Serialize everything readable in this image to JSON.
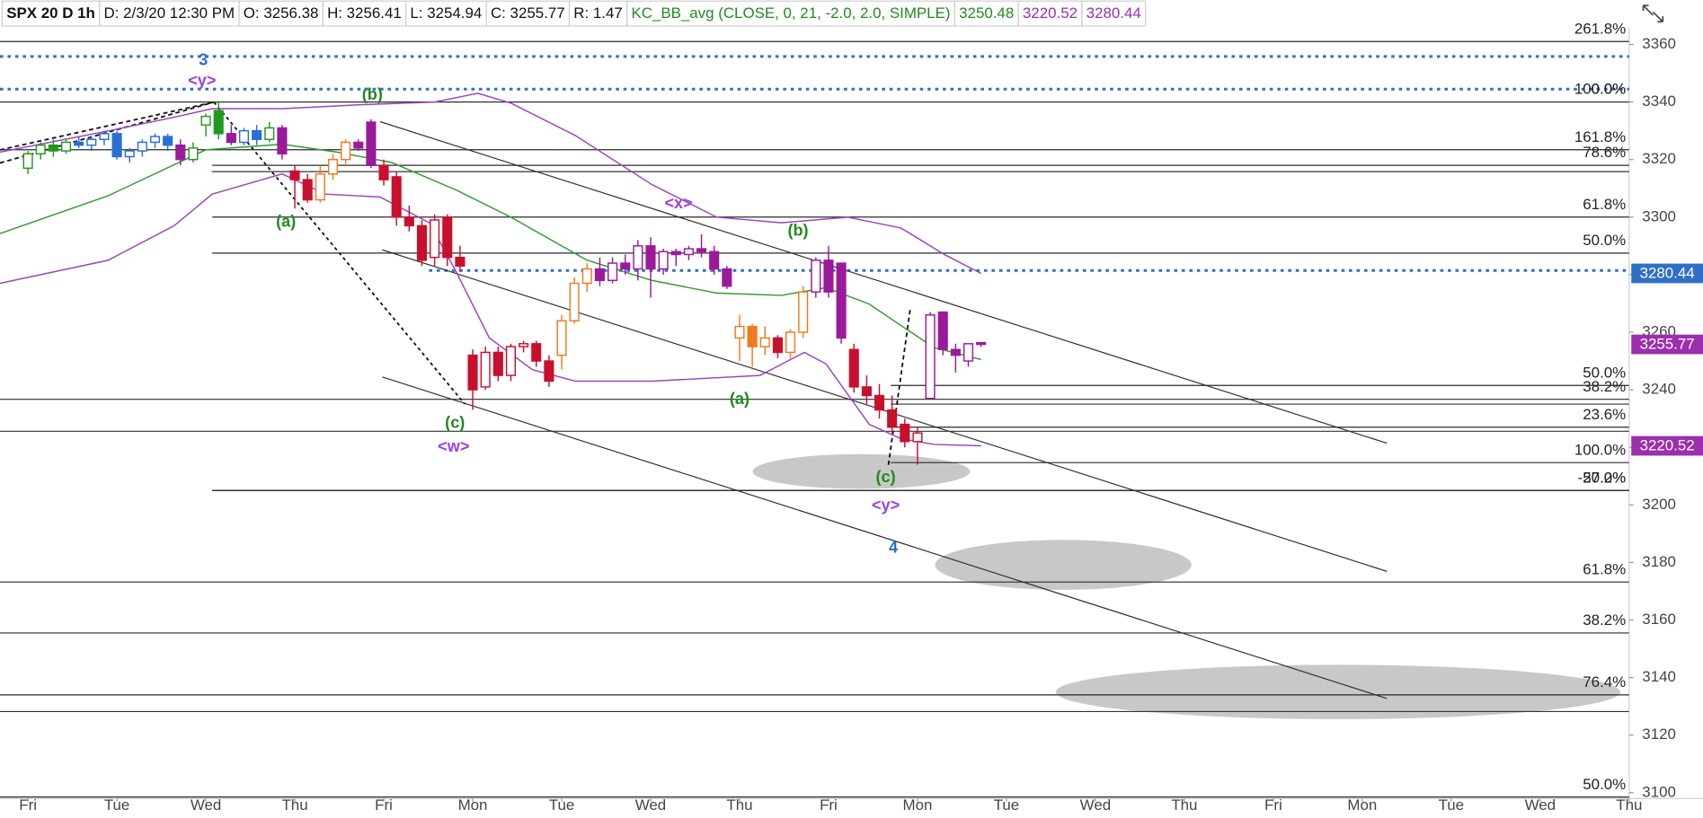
{
  "chart_data": {
    "type": "candlestick",
    "title": "SPX 20 D 1h",
    "info": [
      {
        "text": "D: 2/3/20 12:30 PM",
        "color": "#111111"
      },
      {
        "text": "O: 3256.38",
        "color": "#111111"
      },
      {
        "text": "H: 3256.41",
        "color": "#111111"
      },
      {
        "text": "L: 3254.94",
        "color": "#111111"
      },
      {
        "text": "C: 3255.77",
        "color": "#111111"
      },
      {
        "text": "R: 1.47",
        "color": "#111111"
      },
      {
        "text": "KC_BB_avg (CLOSE, 0, 21, -2.0, 2.0, SIMPLE)",
        "color": "#1f8a1f"
      },
      {
        "text": "3250.48",
        "color": "#1f8a1f"
      },
      {
        "text": "3220.52",
        "color": "#9b2fae"
      },
      {
        "text": "3280.44",
        "color": "#9b2fae"
      }
    ],
    "xlim": [
      -2.2,
      126
    ],
    "xticks": [
      {
        "value": 0,
        "label": "Fri"
      },
      {
        "value": 7,
        "label": "Tue"
      },
      {
        "value": 14,
        "label": "Wed"
      },
      {
        "value": 21,
        "label": "Thu"
      },
      {
        "value": 28,
        "label": "Fri"
      },
      {
        "value": 35,
        "label": "Mon"
      },
      {
        "value": 42,
        "label": "Tue"
      },
      {
        "value": 49,
        "label": "Wed"
      },
      {
        "value": 56,
        "label": "Thu"
      },
      {
        "value": 63,
        "label": "Fri"
      },
      {
        "value": 70,
        "label": "Mon"
      },
      {
        "value": 77,
        "label": "Tue"
      },
      {
        "value": 84,
        "label": "Wed"
      },
      {
        "value": 91,
        "label": "Thu"
      },
      {
        "value": 98,
        "label": "Fri"
      },
      {
        "value": 105,
        "label": "Mon"
      },
      {
        "value": 112,
        "label": "Tue"
      },
      {
        "value": 119,
        "label": "Wed"
      },
      {
        "value": 126,
        "label": "Thu"
      }
    ],
    "ylim": [
      3098,
      3366
    ],
    "yticks": [
      3100,
      3120,
      3140,
      3160,
      3180,
      3200,
      3220,
      3240,
      3260,
      3280,
      3300,
      3320,
      3340,
      3360
    ],
    "x": [
      0,
      1,
      2,
      3,
      4,
      5,
      6,
      7,
      8,
      9,
      10,
      11,
      12,
      13,
      14,
      15,
      16,
      17,
      18,
      19,
      20,
      21,
      22,
      23,
      24,
      25,
      26,
      27,
      28,
      29,
      30,
      31,
      32,
      33,
      34,
      35,
      36,
      37,
      38,
      39,
      40,
      41,
      42,
      43,
      44,
      45,
      46,
      47,
      48,
      49,
      50,
      51,
      52,
      53,
      54,
      55,
      56,
      57,
      58,
      59,
      60,
      61,
      62,
      63,
      64,
      65,
      66,
      67,
      68,
      69,
      70,
      71,
      72,
      73,
      74,
      75
    ],
    "open": [
      3317,
      3322,
      3325,
      3323,
      3326,
      3325,
      3327,
      3329,
      3321,
      3323,
      3326,
      3328,
      3325,
      3320,
      3332,
      3337,
      3329,
      3326,
      3330,
      3327,
      3331,
      3316,
      3313,
      3306,
      3315,
      3320,
      3326,
      3333,
      3318,
      3314,
      3300,
      3297,
      3286,
      3300,
      3286,
      3252,
      3241,
      3253,
      3245,
      3255,
      3256,
      3250,
      3252,
      3264,
      3277,
      3282,
      3278,
      3284,
      3282,
      3290,
      3282,
      3288,
      3287,
      3289,
      3288,
      3282,
      3258,
      3262,
      3255,
      3258,
      3253,
      3260,
      3274,
      3285,
      3284,
      3254,
      3241,
      3238,
      3233,
      3228,
      3222,
      3237,
      3267,
      3254,
      3250,
      3256.38
    ],
    "high": [
      3323,
      3326,
      3327,
      3327,
      3328,
      3328,
      3330,
      3330,
      3324,
      3327,
      3329,
      3329,
      3327,
      3326,
      3336,
      3340,
      3332,
      3331,
      3332,
      3333,
      3332,
      3318,
      3315,
      3318,
      3322,
      3327,
      3327,
      3334,
      3320,
      3316,
      3304,
      3299,
      3301,
      3301,
      3290,
      3254,
      3255,
      3255,
      3256,
      3257,
      3257,
      3252,
      3266,
      3279,
      3284,
      3286,
      3286,
      3287,
      3292,
      3293,
      3289,
      3289,
      3290,
      3294,
      3290,
      3283,
      3266,
      3263,
      3262,
      3259,
      3261,
      3276,
      3286,
      3290,
      3284,
      3256,
      3245,
      3242,
      3238,
      3230,
      3227,
      3267,
      3267,
      3256,
      3256,
      3256.41
    ],
    "low": [
      3315,
      3320,
      3321,
      3322,
      3324,
      3323,
      3325,
      3320,
      3319,
      3321,
      3324,
      3323,
      3318,
      3319,
      3328,
      3327,
      3325,
      3325,
      3325,
      3326,
      3320,
      3303,
      3305,
      3305,
      3313,
      3318,
      3323,
      3317,
      3311,
      3297,
      3295,
      3283,
      3283,
      3283,
      3281,
      3233,
      3240,
      3243,
      3243,
      3253,
      3248,
      3241,
      3247,
      3263,
      3274,
      3276,
      3277,
      3280,
      3278,
      3272,
      3280,
      3283,
      3285,
      3286,
      3280,
      3275,
      3250,
      3248,
      3252,
      3251,
      3251,
      3258,
      3272,
      3272,
      3256,
      3239,
      3235,
      3230,
      3225,
      3220,
      3214,
      3237,
      3252,
      3246,
      3248,
      3254.94
    ],
    "close": [
      3322,
      3325,
      3323,
      3326,
      3325,
      3327,
      3329,
      3321,
      3323,
      3326,
      3328,
      3325,
      3320,
      3324,
      3335,
      3329,
      3326,
      3330,
      3327,
      3331,
      3322,
      3313,
      3306,
      3315,
      3320,
      3326,
      3324,
      3318,
      3313,
      3300,
      3297,
      3285,
      3299,
      3286,
      3283,
      3240,
      3253,
      3245,
      3255,
      3256,
      3250,
      3243,
      3264,
      3277,
      3282,
      3278,
      3284,
      3282,
      3290,
      3282,
      3288,
      3287,
      3289,
      3288,
      3282,
      3276,
      3262,
      3255,
      3258,
      3253,
      3260,
      3274,
      3285,
      3274,
      3258,
      3241,
      3238,
      3233,
      3227,
      3222,
      3225,
      3266,
      3254,
      3252,
      3256,
      3255.77
    ],
    "colors": [
      "#1f9a1f",
      "#1f9a1f",
      "#1f9a1f",
      "#1f9a1f",
      "#2a6fd6",
      "#2a6fd6",
      "#2a6fd6",
      "#2a6fd6",
      "#2a6fd6",
      "#2a6fd6",
      "#2a6fd6",
      "#2a6fd6",
      "#9b1a9b",
      "#1f9a1f",
      "#1f9a1f",
      "#1f9a1f",
      "#9b1a9b",
      "#2a6fd6",
      "#2a6fd6",
      "#1f9a1f",
      "#9b1a9b",
      "#c8102e",
      "#c8102e",
      "#f07a1e",
      "#f07a1e",
      "#f07a1e",
      "#9b1a9b",
      "#9b1a9b",
      "#c8102e",
      "#c8102e",
      "#c8102e",
      "#c8102e",
      "#c8102e",
      "#c8102e",
      "#c8102e",
      "#c8102e",
      "#c8102e",
      "#c8102e",
      "#c8102e",
      "#c8102e",
      "#c8102e",
      "#c8102e",
      "#f07a1e",
      "#f07a1e",
      "#f07a1e",
      "#9b1a9b",
      "#9b1a9b",
      "#9b1a9b",
      "#9b1a9b",
      "#9b1a9b",
      "#9b1a9b",
      "#9b1a9b",
      "#9b1a9b",
      "#9b1a9b",
      "#9b1a9b",
      "#9b1a9b",
      "#f07a1e",
      "#f07a1e",
      "#f07a1e",
      "#c8102e",
      "#f07a1e",
      "#f07a1e",
      "#9b1a9b",
      "#9b1a9b",
      "#9b1a9b",
      "#c8102e",
      "#c8102e",
      "#c8102e",
      "#c8102e",
      "#c8102e",
      "#c8102e",
      "#9b1a9b",
      "#9b1a9b",
      "#9b1a9b",
      "#9b1a9b",
      "#9b1a9b"
    ],
    "bands": [
      {
        "color": "#2f9a2f",
        "x": [
          -2.2,
          6.35,
          14,
          20,
          24.3,
          28.6,
          33.7,
          38,
          44,
          49.1,
          54.2,
          59.3,
          62.8,
          66.2,
          68.7,
          71.3,
          75
        ],
        "values": [
          3294.3,
          3307.5,
          3323.4,
          3325.3,
          3322.6,
          3319,
          3309.4,
          3300,
          3285,
          3278,
          3273.6,
          3272.8,
          3275.5,
          3269.8,
          3262.3,
          3254.7,
          3250.48
        ]
      },
      {
        "color": "#a040c0",
        "x": [
          -2.2,
          6.3,
          11.5,
          14.5,
          20,
          23.4,
          27.7,
          31.6,
          33.7,
          36.3,
          39.7,
          43.1,
          49.1,
          57.6,
          61.1,
          62.8,
          66.2,
          68.7,
          71.3,
          75
        ],
        "values": [
          3277,
          3285,
          3297,
          3308,
          3315,
          3308,
          3307,
          3298,
          3281,
          3258,
          3247,
          3243,
          3243,
          3245,
          3253,
          3249,
          3228,
          3223,
          3221,
          3220.52
        ]
      },
      {
        "color": "#a040c0",
        "x": [
          -2.2,
          6.35,
          11.5,
          14.5,
          20,
          26,
          32,
          35.4,
          38,
          43.1,
          49.1,
          54.2,
          59.3,
          64.5,
          68.7,
          72.2,
          75
        ],
        "values": [
          3322.6,
          3330,
          3334.7,
          3337.7,
          3337.7,
          3339,
          3340,
          3343,
          3339.6,
          3328.3,
          3311.3,
          3300,
          3298,
          3300,
          3296.2,
          3286.8,
          3280.44
        ]
      }
    ],
    "fib_levels": [
      {
        "label": "261.8%",
        "value": 3361,
        "from": -2.2
      },
      {
        "label": "100.0%",
        "value": 3340,
        "from": -2.2
      },
      {
        "label": "0.0%",
        "value": 3340,
        "from": -2.2
      },
      {
        "label": "161.8%",
        "value": 3323.4,
        "from": -2.2
      },
      {
        "label": "78.6%",
        "value": 3318,
        "from": 14.5
      },
      {
        "label": "61.8%",
        "value": 3300,
        "from": 14.5
      },
      {
        "label": "50.0%",
        "value": 3287.5,
        "from": 14.5
      },
      {
        "label": "50.0%",
        "value": 3241.5,
        "from": 67.9
      },
      {
        "label": "38.2%",
        "value": 3236.7,
        "from": -2.2
      },
      {
        "label": "23.6%",
        "value": 3227,
        "from": 67.9
      },
      {
        "label": "100.0%",
        "value": 3214.7,
        "from": 67.9
      },
      {
        "label": "-27.2%",
        "value": 3205,
        "from": 14.5
      },
      {
        "label": "50.0%",
        "value": 3205,
        "from": 14.5
      },
      {
        "label": "61.8%",
        "value": 3173.2,
        "from": -2.2
      },
      {
        "label": "38.2%",
        "value": 3155.5,
        "from": -2.2
      },
      {
        "label": "76.4%",
        "value": 3134,
        "from": -2.2
      },
      {
        "label": "50.0%",
        "value": 3098.5,
        "from": -2.2
      }
    ],
    "price_tags": [
      {
        "value": 3280.44,
        "color": "#2f6fc8"
      },
      {
        "value": 3255.77,
        "color": "#9b2fae"
      },
      {
        "value": 3220.52,
        "color": "#9b2fae"
      }
    ],
    "annotations": [
      {
        "text": "3",
        "x": 13.8,
        "y": 3354.3,
        "color": "#2a6fc8"
      },
      {
        "text": "<y>",
        "x": 13.7,
        "y": 3347.2,
        "color": "#a040e0"
      },
      {
        "text": "(b)",
        "x": 27.1,
        "y": 3342.3,
        "color": "#1f8a1f"
      },
      {
        "text": "(a)",
        "x": 20.3,
        "y": 3298.1,
        "color": "#1f8a1f"
      },
      {
        "text": "(c)",
        "x": 33.6,
        "y": 3228.3,
        "color": "#1f8a1f"
      },
      {
        "text": "<w>",
        "x": 33.5,
        "y": 3220,
        "color": "#a040e0"
      },
      {
        "text": "<x>",
        "x": 51.2,
        "y": 3304.5,
        "color": "#a040e0"
      },
      {
        "text": "(b)",
        "x": 60.6,
        "y": 3295.1,
        "color": "#1f8a1f"
      },
      {
        "text": "(a)",
        "x": 56,
        "y": 3236.6,
        "color": "#1f8a1f"
      },
      {
        "text": "(c)",
        "x": 67.5,
        "y": 3209.4,
        "color": "#1f8a1f"
      },
      {
        "text": "<y>",
        "x": 67.5,
        "y": 3199.6,
        "color": "#a040e0"
      },
      {
        "text": "4",
        "x": 68.1,
        "y": 3184.9,
        "color": "#2a6fc8"
      }
    ]
  }
}
